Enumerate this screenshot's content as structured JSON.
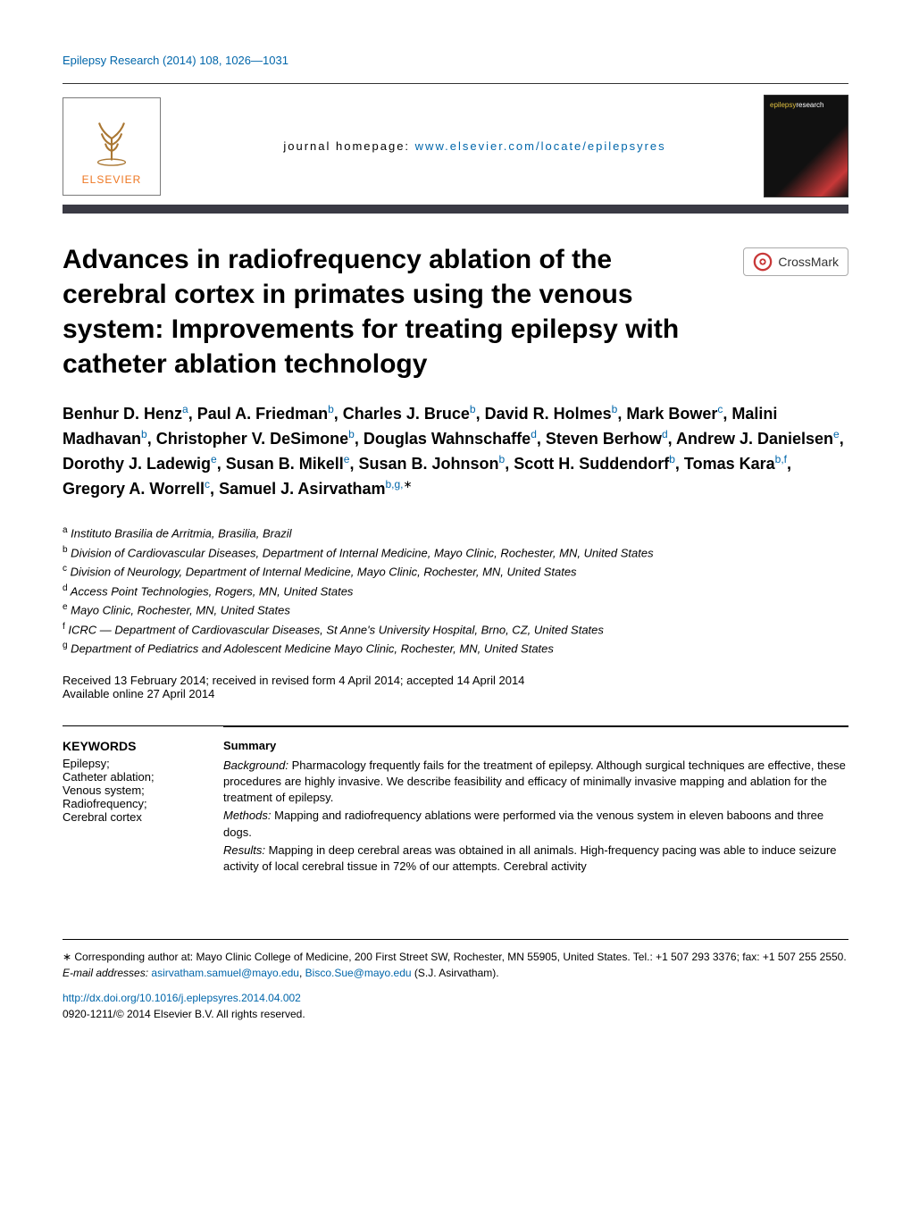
{
  "journal_ref": "Epilepsy Research (2014) 108, 1026—1031",
  "journal_homepage_label": "journal homepage:",
  "journal_homepage_url": "www.elsevier.com/locate/epilepsyres",
  "publisher_logo": {
    "name": "ELSEVIER",
    "border_color": "#7a7a7a",
    "tree_color": "#c08030",
    "text_accent": "#ee7722"
  },
  "journal_cover": {
    "title_a": "epilepsy",
    "title_b": "research",
    "bg_dark": "#111111",
    "bg_accent": "#c83838",
    "title_accent": "#e0c040"
  },
  "crossmark_label": "CrossMark",
  "title": "Advances in radiofrequency ablation of the cerebral cortex in primates using the venous system: Improvements for treating epilepsy with catheter ablation technology",
  "authors": [
    {
      "name": "Benhur D. Henz",
      "aff": "a"
    },
    {
      "name": "Paul A. Friedman",
      "aff": "b"
    },
    {
      "name": "Charles J. Bruce",
      "aff": "b"
    },
    {
      "name": "David R. Holmes",
      "aff": "b"
    },
    {
      "name": "Mark Bower",
      "aff": "c"
    },
    {
      "name": "Malini Madhavan",
      "aff": "b"
    },
    {
      "name": "Christopher V. DeSimone",
      "aff": "b"
    },
    {
      "name": "Douglas Wahnschaffe",
      "aff": "d"
    },
    {
      "name": "Steven Berhow",
      "aff": "d"
    },
    {
      "name": "Andrew J. Danielsen",
      "aff": "e"
    },
    {
      "name": "Dorothy J. Ladewig",
      "aff": "e"
    },
    {
      "name": "Susan B. Mikell",
      "aff": "e"
    },
    {
      "name": "Susan B. Johnson",
      "aff": "b"
    },
    {
      "name": "Scott H. Suddendorf",
      "aff": "b"
    },
    {
      "name": "Tomas Kara",
      "aff": "b,f"
    },
    {
      "name": "Gregory A. Worrell",
      "aff": "c"
    },
    {
      "name": "Samuel J. Asirvatham",
      "aff": "b,g,",
      "corr": true
    }
  ],
  "affiliations": {
    "a": "Instituto Brasilia de Arritmia, Brasilia, Brazil",
    "b": "Division of Cardiovascular Diseases, Department of Internal Medicine, Mayo Clinic, Rochester, MN, United States",
    "c": "Division of Neurology, Department of Internal Medicine, Mayo Clinic, Rochester, MN, United States",
    "d": "Access Point Technologies, Rogers, MN, United States",
    "e": "Mayo Clinic, Rochester, MN, United States",
    "f": "ICRC — Department of Cardiovascular Diseases, St Anne's University Hospital, Brno, CZ, United States",
    "g": "Department of Pediatrics and Adolescent Medicine Mayo Clinic, Rochester, MN, United States"
  },
  "dates": {
    "received": "Received 13 February 2014; received in revised form 4 April 2014; accepted 14 April 2014",
    "online": "Available online 27 April 2014"
  },
  "keywords_heading": "KEYWORDS",
  "keywords": [
    "Epilepsy;",
    "Catheter ablation;",
    "Venous system;",
    "Radiofrequency;",
    "Cerebral cortex"
  ],
  "summary_heading": "Summary",
  "summary": {
    "background_label": "Background:",
    "background": "Pharmacology frequently fails for the treatment of epilepsy. Although surgical techniques are effective, these procedures are highly invasive. We describe feasibility and efficacy of minimally invasive mapping and ablation for the treatment of epilepsy.",
    "methods_label": "Methods:",
    "methods": "Mapping and radiofrequency ablations were performed via the venous system in eleven baboons and three dogs.",
    "results_label": "Results:",
    "results": "Mapping in deep cerebral areas was obtained in all animals. High-frequency pacing was able to induce seizure activity of local cerebral tissue in 72% of our attempts. Cerebral activity"
  },
  "footer": {
    "corr": "∗ Corresponding author at: Mayo Clinic College of Medicine, 200 First Street SW, Rochester, MN 55905, United States. Tel.: +1 507 293 3376; fax: +1 507 255 2550.",
    "email_label": "E-mail addresses:",
    "emails": [
      "asirvatham.samuel@mayo.edu",
      "Bisco.Sue@mayo.edu"
    ],
    "email_owner": "(S.J. Asirvatham).",
    "doi": "http://dx.doi.org/10.1016/j.eplepsyres.2014.04.002",
    "copyright": "0920-1211/© 2014 Elsevier B.V. All rights reserved."
  },
  "colors": {
    "link": "#0066aa",
    "text": "#000000",
    "header_border": "#3a3a44"
  }
}
